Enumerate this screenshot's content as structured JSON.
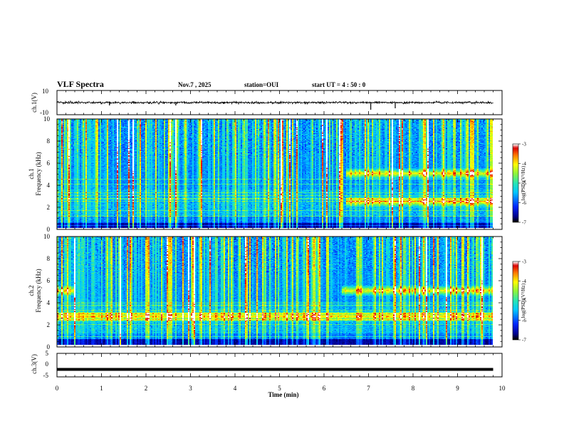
{
  "header": {
    "title": "VLF Spectra",
    "date": "Nov.7 , 2025",
    "station": "station=OUI",
    "start": "start UT = 4 : 50 : 0"
  },
  "chart_data": [
    {
      "type": "line",
      "name": "ch1-waveform",
      "ylabel": "ch.1(V)",
      "ylim": [
        -10,
        10
      ],
      "yticks": [
        "10",
        "-10"
      ],
      "baseline": 0
    },
    {
      "type": "heatmap",
      "name": "ch1-spectrogram",
      "ylabel_top": "ch.1",
      "ylabel": "Frequency (kHz)",
      "ylim": [
        0,
        10
      ],
      "yticks": [
        "0",
        "2",
        "4",
        "6",
        "8",
        "10"
      ],
      "emission_bands_khz": [
        {
          "start_min": 6.5,
          "end_min": 9.8,
          "freq": 5.0
        },
        {
          "start_min": 6.5,
          "end_min": 9.8,
          "freq": 2.4
        }
      ]
    },
    {
      "type": "heatmap",
      "name": "ch2-spectrogram",
      "ylabel_top": "ch.2",
      "ylabel": "Frequency (kHz)",
      "ylim": [
        0,
        10
      ],
      "yticks": [
        "0",
        "2",
        "4",
        "6",
        "8",
        "10"
      ],
      "emission_bands_khz": [
        {
          "start_min": 0.0,
          "end_min": 0.4,
          "freq": 5.0
        },
        {
          "start_min": 6.4,
          "end_min": 9.8,
          "freq": 5.0
        },
        {
          "start_min": 0.0,
          "end_min": 9.8,
          "freq": 2.6
        }
      ]
    },
    {
      "type": "line",
      "name": "ch3-waveform",
      "ylabel": "ch.3(V)",
      "ylim": [
        -5,
        5
      ],
      "yticks": [
        "5",
        "0",
        "-5"
      ],
      "baseline": -1.8
    }
  ],
  "x_axis": {
    "label": "Time (min)",
    "range": [
      0,
      10
    ],
    "ticks": [
      "0",
      "1",
      "2",
      "3",
      "4",
      "5",
      "6",
      "7",
      "8",
      "9",
      "10"
    ],
    "data_end": 9.8
  },
  "colorbar": {
    "label": "log(PSD)(V²/Hz)",
    "range": [
      -7,
      -3
    ],
    "ticks": [
      "-3",
      "-4",
      "-5",
      "-6",
      "-7"
    ]
  }
}
